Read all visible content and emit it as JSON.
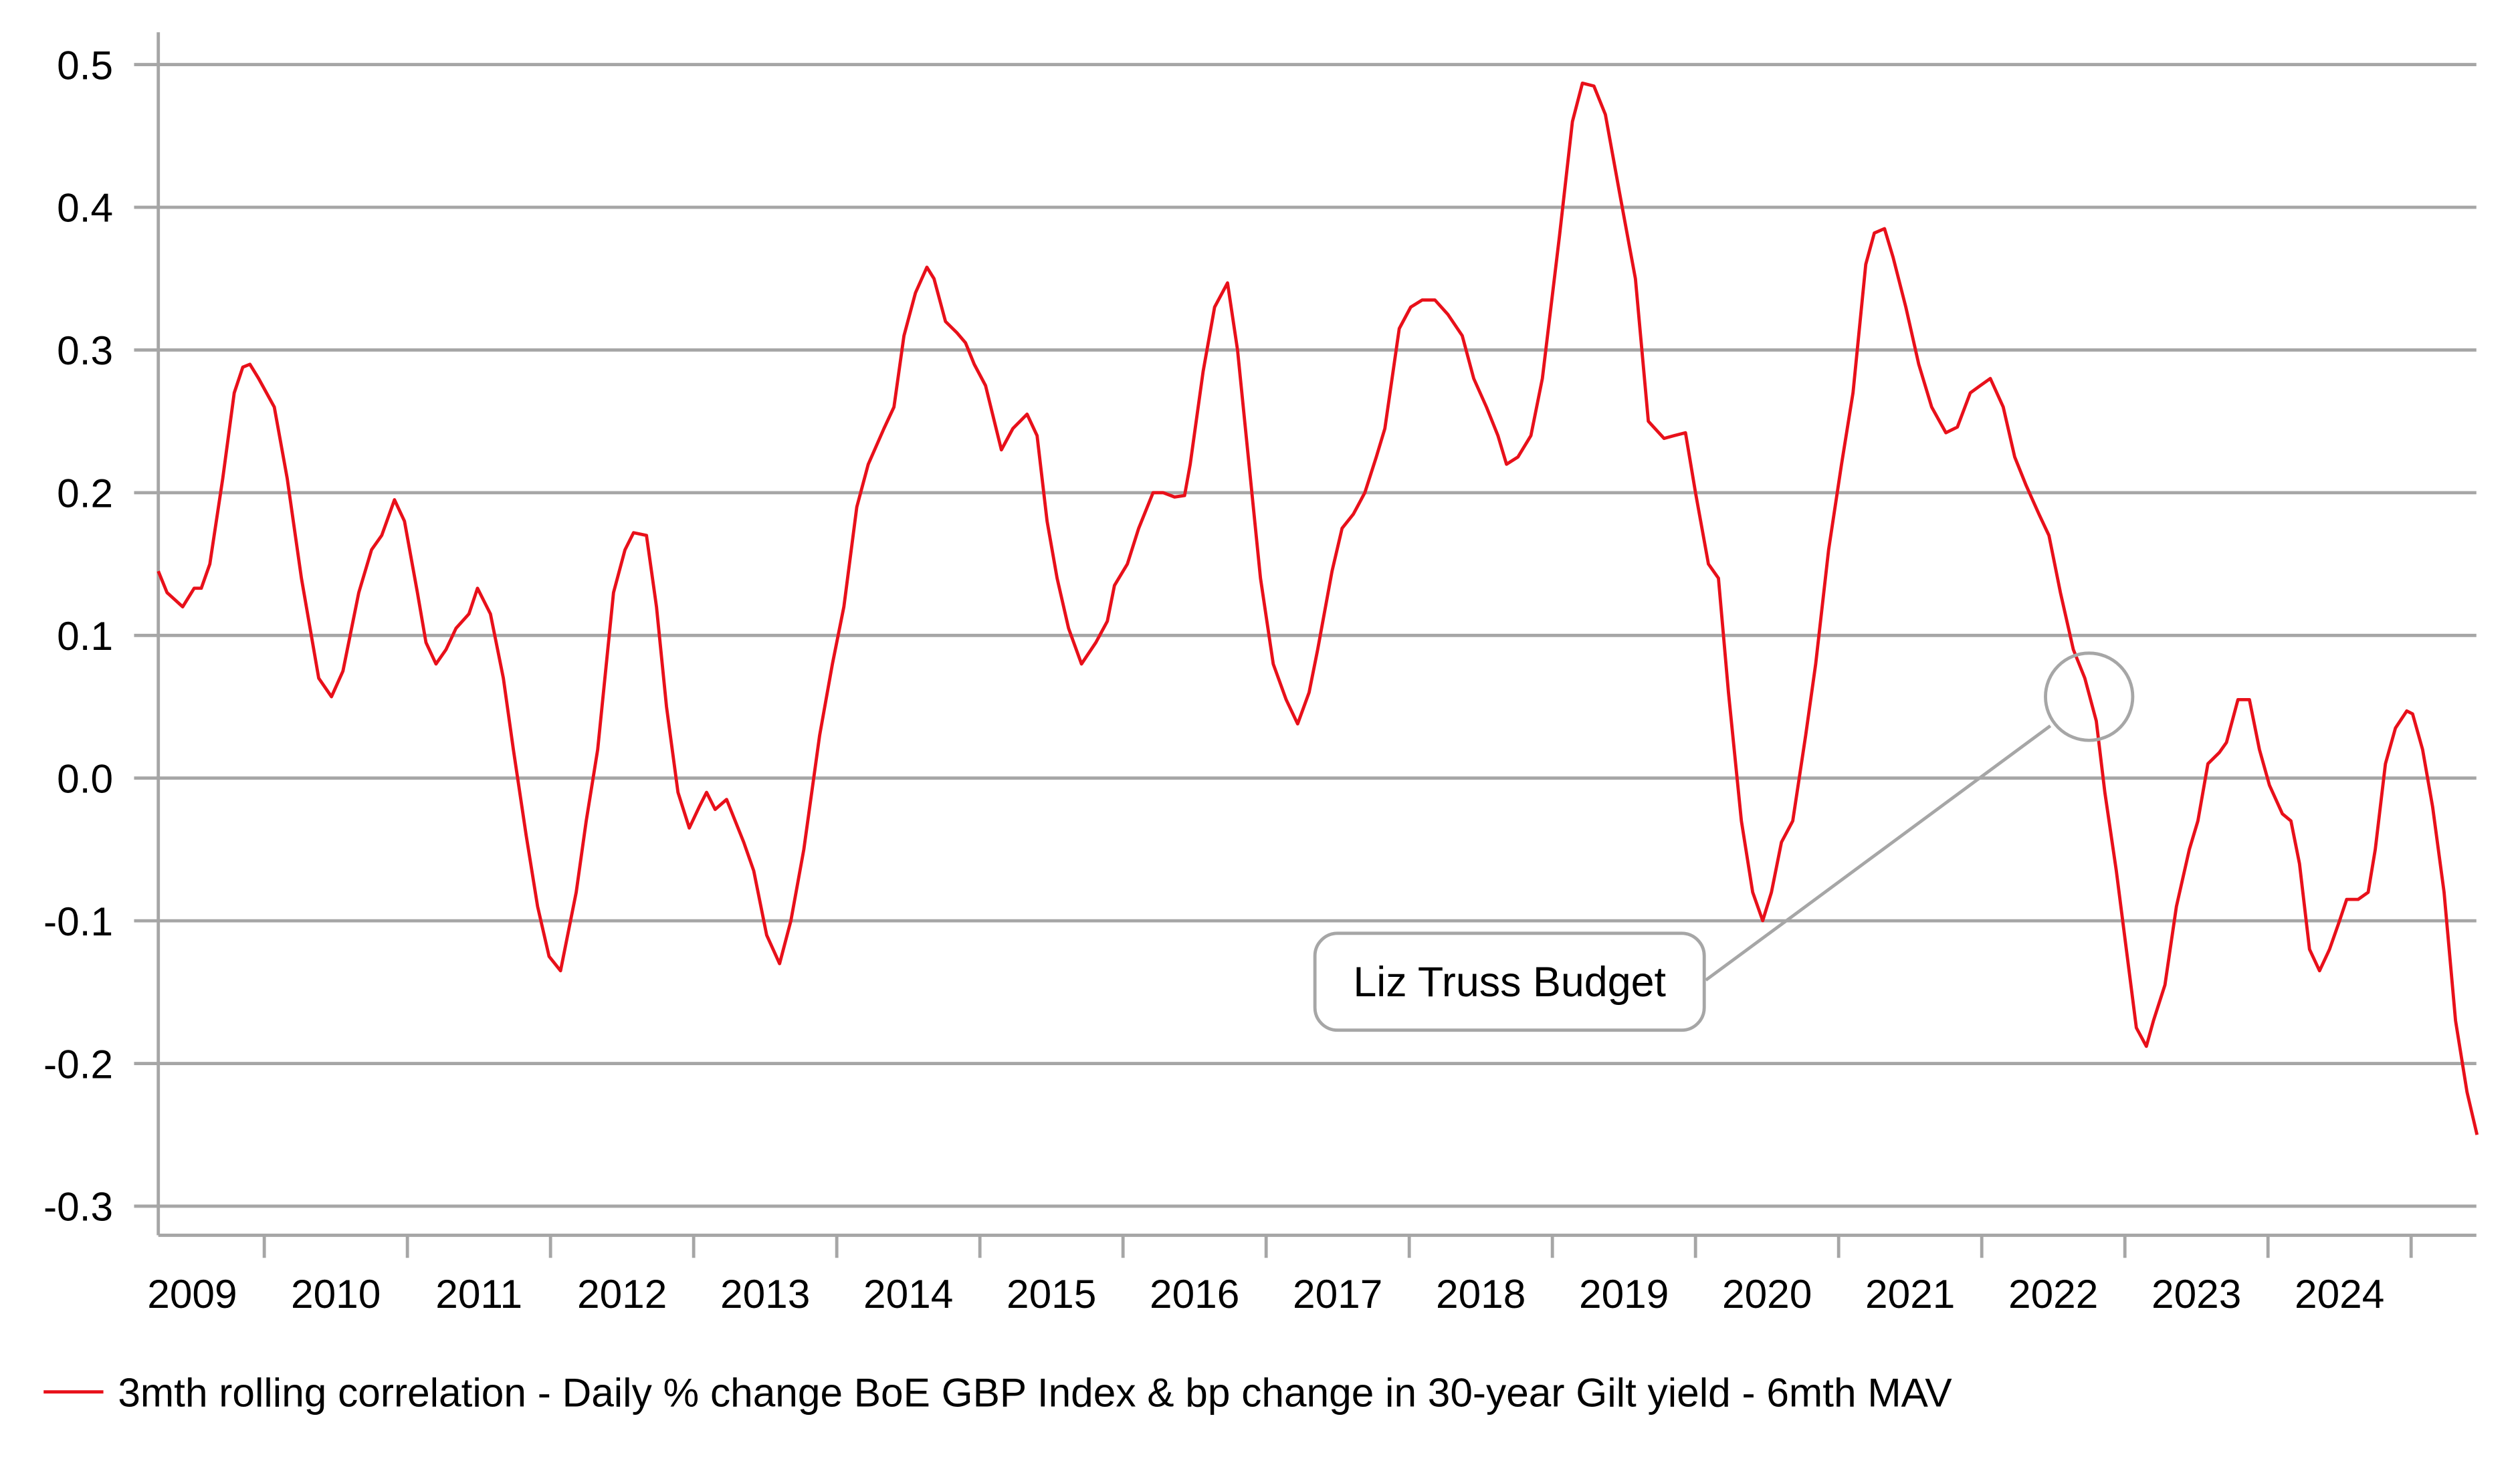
{
  "chart_data": {
    "type": "line",
    "title": "",
    "xlabel": "",
    "ylabel": "",
    "ylim": [
      -0.3,
      0.5
    ],
    "xlim": [
      2009.26,
      2025.46
    ],
    "yticks": [
      "0.5",
      "0.4",
      "0.3",
      "0.2",
      "0.1",
      "0.0",
      "-0.1",
      "-0.2",
      "-0.3"
    ],
    "ytick_values": [
      0.5,
      0.4,
      0.3,
      0.2,
      0.1,
      0.0,
      -0.1,
      -0.2,
      -0.3
    ],
    "xticks": [
      "2009",
      "2010",
      "2011",
      "2012",
      "2013",
      "2014",
      "2015",
      "2016",
      "2017",
      "2018",
      "2019",
      "2020",
      "2021",
      "2022",
      "2023",
      "2024"
    ],
    "grid": "horizontal",
    "legend_position": "bottom-left",
    "colors": {
      "series": "#e8101a",
      "grid": "#a6a6a6",
      "annotation": "#a6a6a6"
    },
    "annotation": {
      "label": "Liz Truss Budget",
      "x": 2022.75,
      "y": 0.057
    },
    "series": [
      {
        "name": "3mth rolling correlation - Daily % change BoE GBP Index & bp change in 30-year Gilt yield - 6mth MAV",
        "x": [
          2009.26,
          2009.32,
          2009.43,
          2009.51,
          2009.56,
          2009.62,
          2009.71,
          2009.79,
          2009.85,
          2009.9,
          2009.96,
          2010.07,
          2010.16,
          2010.26,
          2010.38,
          2010.47,
          2010.55,
          2010.66,
          2010.75,
          2010.82,
          2010.91,
          2010.98,
          2011.07,
          2011.13,
          2011.2,
          2011.27,
          2011.34,
          2011.43,
          2011.49,
          2011.58,
          2011.67,
          2011.74,
          2011.83,
          2011.91,
          2011.99,
          2012.07,
          2012.18,
          2012.25,
          2012.33,
          2012.44,
          2012.52,
          2012.58,
          2012.67,
          2012.74,
          2012.81,
          2012.89,
          2012.97,
          2013.04,
          2013.09,
          2013.15,
          2013.23,
          2013.35,
          2013.42,
          2013.51,
          2013.6,
          2013.68,
          2013.77,
          2013.88,
          2013.97,
          2014.05,
          2014.14,
          2014.22,
          2014.33,
          2014.4,
          2014.47,
          2014.55,
          2014.63,
          2014.68,
          2014.76,
          2014.84,
          2014.9,
          2014.96,
          2015.04,
          2015.15,
          2015.23,
          2015.33,
          2015.4,
          2015.47,
          2015.54,
          2015.62,
          2015.71,
          2015.81,
          2015.89,
          2015.94,
          2016.03,
          2016.11,
          2016.21,
          2016.28,
          2016.36,
          2016.43,
          2016.47,
          2016.56,
          2016.64,
          2016.73,
          2016.8,
          2016.88,
          2016.96,
          2017.05,
          2017.14,
          2017.22,
          2017.3,
          2017.36,
          2017.46,
          2017.53,
          2017.61,
          2017.69,
          2017.77,
          2017.83,
          2017.93,
          2018.01,
          2018.09,
          2018.18,
          2018.27,
          2018.37,
          2018.45,
          2018.54,
          2018.62,
          2018.68,
          2018.76,
          2018.85,
          2018.93,
          2019.05,
          2019.14,
          2019.21,
          2019.29,
          2019.37,
          2019.47,
          2019.58,
          2019.67,
          2019.78,
          2019.85,
          2019.93,
          2020.0,
          2020.09,
          2020.16,
          2020.23,
          2020.32,
          2020.4,
          2020.47,
          2020.53,
          2020.6,
          2020.68,
          2020.77,
          2020.84,
          2020.93,
          2021.02,
          2021.1,
          2021.19,
          2021.25,
          2021.32,
          2021.38,
          2021.47,
          2021.56,
          2021.65,
          2021.75,
          2021.83,
          2021.92,
          2021.99,
          2022.06,
          2022.15,
          2022.23,
          2022.31,
          2022.4,
          2022.47,
          2022.55,
          2022.64,
          2022.72,
          2022.8,
          2022.86,
          2022.94,
          2023.01,
          2023.08,
          2023.15,
          2023.2,
          2023.28,
          2023.36,
          2023.45,
          2023.51,
          2023.58,
          2023.66,
          2023.71,
          2023.79,
          2023.87,
          2023.94,
          2024.01,
          2024.1,
          2024.16,
          2024.22,
          2024.29,
          2024.36,
          2024.43,
          2024.5,
          2024.55,
          2024.63,
          2024.7,
          2024.75,
          2024.82,
          2024.89,
          2024.97,
          2025.01,
          2025.08,
          2025.15,
          2025.23,
          2025.31,
          2025.39,
          2025.46
        ],
        "y": [
          0.145,
          0.13,
          0.12,
          0.133,
          0.133,
          0.15,
          0.21,
          0.27,
          0.288,
          0.29,
          0.28,
          0.26,
          0.21,
          0.14,
          0.07,
          0.057,
          0.075,
          0.13,
          0.16,
          0.17,
          0.195,
          0.18,
          0.13,
          0.095,
          0.08,
          0.09,
          0.105,
          0.115,
          0.133,
          0.115,
          0.07,
          0.02,
          -0.04,
          -0.09,
          -0.125,
          -0.135,
          -0.08,
          -0.03,
          0.02,
          0.13,
          0.16,
          0.172,
          0.17,
          0.12,
          0.05,
          -0.01,
          -0.035,
          -0.02,
          -0.01,
          -0.022,
          -0.015,
          -0.045,
          -0.065,
          -0.11,
          -0.13,
          -0.1,
          -0.05,
          0.03,
          0.08,
          0.12,
          0.19,
          0.22,
          0.245,
          0.26,
          0.31,
          0.34,
          0.358,
          0.35,
          0.32,
          0.312,
          0.305,
          0.29,
          0.275,
          0.23,
          0.245,
          0.255,
          0.24,
          0.18,
          0.14,
          0.105,
          0.08,
          0.095,
          0.11,
          0.135,
          0.15,
          0.175,
          0.2,
          0.2,
          0.197,
          0.198,
          0.22,
          0.285,
          0.33,
          0.347,
          0.3,
          0.22,
          0.14,
          0.08,
          0.055,
          0.038,
          0.06,
          0.09,
          0.145,
          0.175,
          0.185,
          0.2,
          0.225,
          0.245,
          0.315,
          0.33,
          0.335,
          0.335,
          0.325,
          0.31,
          0.28,
          0.26,
          0.24,
          0.22,
          0.225,
          0.24,
          0.28,
          0.38,
          0.46,
          0.487,
          0.485,
          0.465,
          0.41,
          0.35,
          0.25,
          0.238,
          0.24,
          0.242,
          0.2,
          0.15,
          0.14,
          0.06,
          -0.03,
          -0.08,
          -0.1,
          -0.08,
          -0.045,
          -0.03,
          0.03,
          0.08,
          0.16,
          0.22,
          0.27,
          0.36,
          0.382,
          0.385,
          0.365,
          0.33,
          0.29,
          0.26,
          0.242,
          0.246,
          0.27,
          0.275,
          0.28,
          0.26,
          0.225,
          0.205,
          0.185,
          0.17,
          0.13,
          0.09,
          0.07,
          0.04,
          -0.01,
          -0.065,
          -0.12,
          -0.175,
          -0.188,
          -0.17,
          -0.145,
          -0.09,
          -0.05,
          -0.03,
          0.01,
          0.018,
          0.025,
          0.055,
          0.055,
          0.02,
          -0.005,
          -0.025,
          -0.03,
          -0.06,
          -0.12,
          -0.135,
          -0.12,
          -0.1,
          -0.085,
          -0.085,
          -0.08,
          -0.05,
          0.01,
          0.035,
          0.047,
          0.045,
          0.02,
          -0.02,
          -0.08,
          -0.17,
          -0.22,
          -0.25
        ]
      }
    ]
  }
}
